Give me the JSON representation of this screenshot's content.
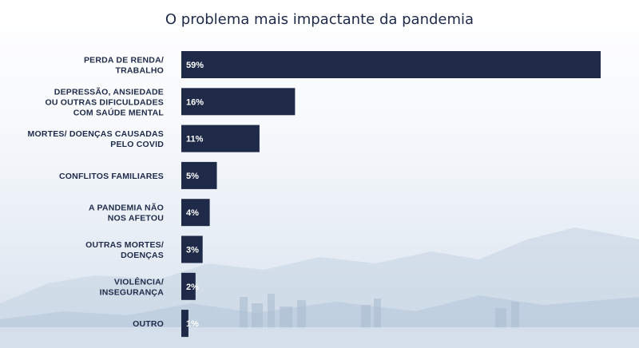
{
  "chart_data": {
    "type": "bar",
    "orientation": "horizontal",
    "title": "O problema mais impactante da pandemia",
    "categories": [
      [
        "PERDA DE RENDA/",
        "TRABALHO"
      ],
      [
        "DEPRESSÃO, ANSIEDADE",
        "OU OUTRAS DIFICULDADES",
        "COM SAÚDE MENTAL"
      ],
      [
        "MORTES/ DOENÇAS CAUSADAS",
        "PELO COVID"
      ],
      [
        "CONFLITOS FAMILIARES"
      ],
      [
        "A PANDEMIA NÃO",
        "NOS AFETOU"
      ],
      [
        "OUTRAS MORTES/",
        "DOENÇAS"
      ],
      [
        "VIOLÊNCIA/",
        "INSEGURANÇA"
      ],
      [
        "OUTRO"
      ]
    ],
    "values": [
      59,
      16,
      11,
      5,
      4,
      3,
      2,
      1
    ],
    "value_labels": [
      "59%",
      "16%",
      "11%",
      "5%",
      "4%",
      "3%",
      "2%",
      "1%"
    ],
    "bar_color": "#1e2a48",
    "value_label_color": "#ffffff",
    "grid": false,
    "legend": "none"
  }
}
